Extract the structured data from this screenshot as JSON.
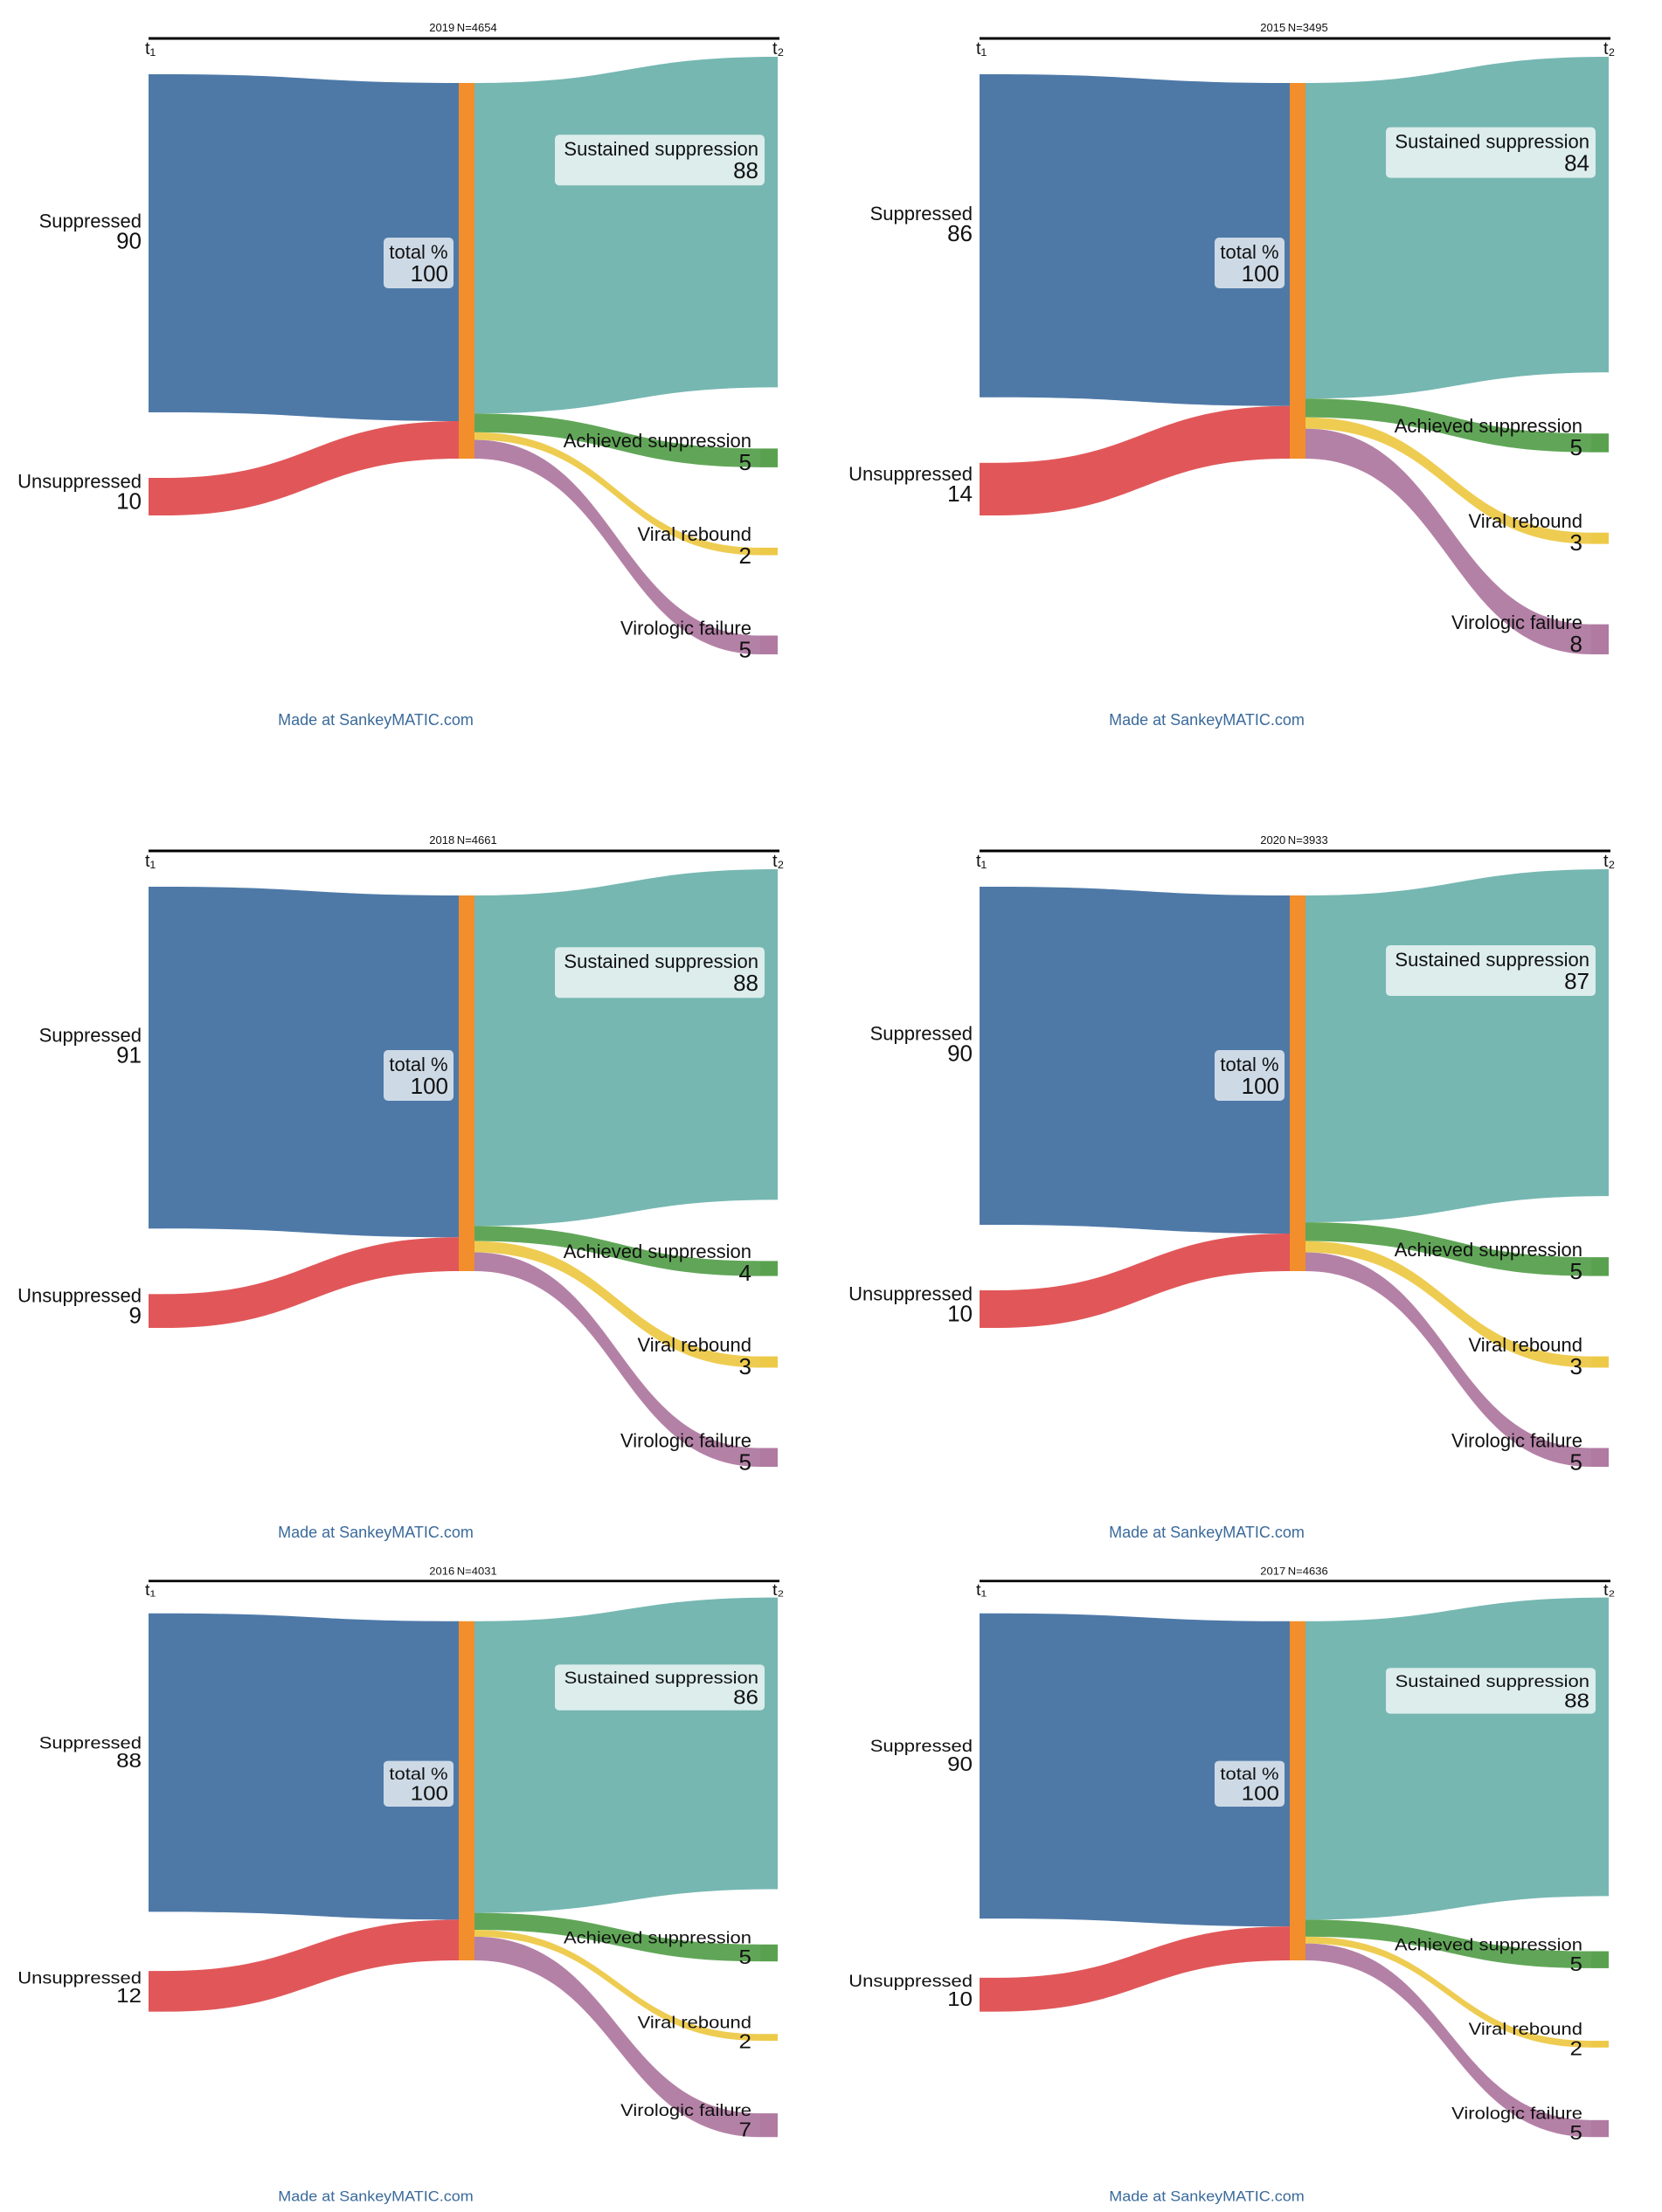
{
  "colors": {
    "suppressed": "#4e79a7",
    "unsuppressed": "#e15759",
    "total": "#f28e2b",
    "sustained": "#76b7b2",
    "achieved": "#59a14f",
    "rebound": "#edc948",
    "failure": "#b07aa1",
    "labelBox": "#ffffff"
  },
  "panels": [
    {
      "title": "2019 N=4654",
      "t1": "t₁",
      "t2": "t₂",
      "sources": [
        {
          "name": "Suppressed",
          "value": 90
        },
        {
          "name": "Unsuppressed",
          "value": 10
        }
      ],
      "middle": {
        "name": "total %",
        "value": 100
      },
      "targets": [
        {
          "name": "Sustained suppression",
          "value": 88
        },
        {
          "name": "Achieved suppression",
          "value": 5
        },
        {
          "name": "Viral rebound",
          "value": 2
        },
        {
          "name": "Virologic failure",
          "value": 5
        }
      ],
      "credit": "Made at SankeyMATIC.com"
    },
    {
      "title": "2015 N=3495",
      "t1": "t₁",
      "t2": "t₂",
      "sources": [
        {
          "name": "Suppressed",
          "value": 86
        },
        {
          "name": "Unsuppressed",
          "value": 14
        }
      ],
      "middle": {
        "name": "total %",
        "value": 100
      },
      "targets": [
        {
          "name": "Sustained suppression",
          "value": 84
        },
        {
          "name": "Achieved suppression",
          "value": 5
        },
        {
          "name": "Viral rebound",
          "value": 3
        },
        {
          "name": "Virologic failure",
          "value": 8
        }
      ],
      "credit": "Made at SankeyMATIC.com"
    },
    {
      "title": "2018 N=4661",
      "t1": "t₁",
      "t2": "t₂",
      "sources": [
        {
          "name": "Suppressed",
          "value": 91
        },
        {
          "name": "Unsuppressed",
          "value": 9
        }
      ],
      "middle": {
        "name": "total %",
        "value": 100
      },
      "targets": [
        {
          "name": "Sustained suppression",
          "value": 88
        },
        {
          "name": "Achieved suppression",
          "value": 4
        },
        {
          "name": "Viral rebound",
          "value": 3
        },
        {
          "name": "Virologic failure",
          "value": 5
        }
      ],
      "credit": "Made at SankeyMATIC.com"
    },
    {
      "title": "2020 N=3933",
      "t1": "t₁",
      "t2": "t₂",
      "sources": [
        {
          "name": "Suppressed",
          "value": 90
        },
        {
          "name": "Unsuppressed",
          "value": 10
        }
      ],
      "middle": {
        "name": "total %",
        "value": 100
      },
      "targets": [
        {
          "name": "Sustained suppression",
          "value": 87
        },
        {
          "name": "Achieved suppression",
          "value": 5
        },
        {
          "name": "Viral rebound",
          "value": 3
        },
        {
          "name": "Virologic failure",
          "value": 5
        }
      ],
      "credit": "Made at SankeyMATIC.com"
    },
    {
      "title": "2016 N=4031",
      "t1": "t₁",
      "t2": "t₂",
      "sources": [
        {
          "name": "Suppressed",
          "value": 88
        },
        {
          "name": "Unsuppressed",
          "value": 12
        }
      ],
      "middle": {
        "name": "total %",
        "value": 100
      },
      "targets": [
        {
          "name": "Sustained suppression",
          "value": 86
        },
        {
          "name": "Achieved suppression",
          "value": 5
        },
        {
          "name": "Viral rebound",
          "value": 2
        },
        {
          "name": "Virologic failure",
          "value": 7
        }
      ],
      "credit": "Made at SankeyMATIC.com"
    },
    {
      "title": "2017 N=4636",
      "t1": "t₁",
      "t2": "t₂",
      "sources": [
        {
          "name": "Suppressed",
          "value": 90
        },
        {
          "name": "Unsuppressed",
          "value": 10
        }
      ],
      "middle": {
        "name": "total %",
        "value": 100
      },
      "targets": [
        {
          "name": "Sustained suppression",
          "value": 88
        },
        {
          "name": "Achieved suppression",
          "value": 5
        },
        {
          "name": "Viral rebound",
          "value": 2
        },
        {
          "name": "Virologic failure",
          "value": 5
        }
      ],
      "credit": "Made at SankeyMATIC.com"
    }
  ]
}
